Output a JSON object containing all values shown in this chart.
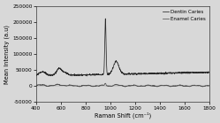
{
  "title": "",
  "xlabel": "Raman Shift (cm⁻¹)",
  "ylabel": "Mean Intensity (a.u)",
  "xlim": [
    400,
    1800
  ],
  "ylim": [
    -50000,
    250000
  ],
  "yticks": [
    -50000,
    0,
    50000,
    100000,
    150000,
    200000,
    250000
  ],
  "xticks": [
    400,
    600,
    800,
    1000,
    1200,
    1400,
    1600,
    1800
  ],
  "legend": [
    "Dentin Caries",
    "Enamel Caries"
  ],
  "dentin_color": "#2a2a2a",
  "enamel_color": "#555555",
  "bg_color": "#d8d8d8"
}
